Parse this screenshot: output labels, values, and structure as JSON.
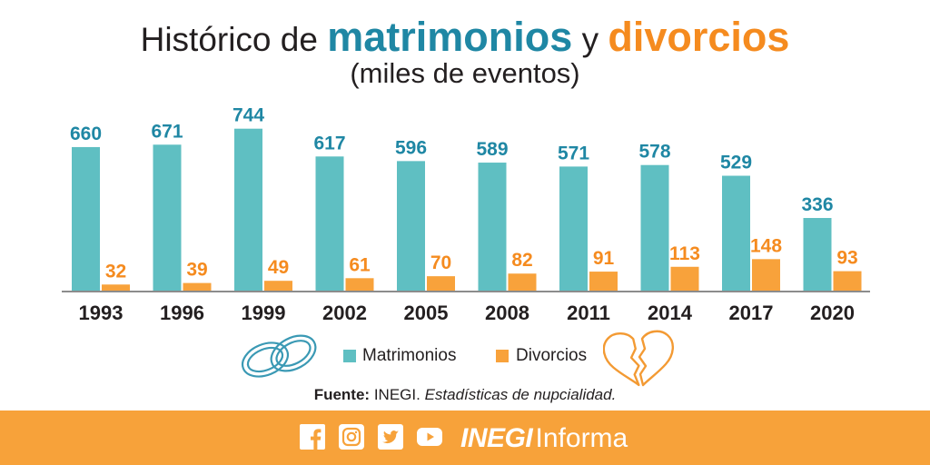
{
  "chart_data": {
    "type": "bar",
    "title": [
      "Histórico de",
      "matrimonios",
      "y",
      "divorcios"
    ],
    "subtitle": "(miles de eventos)",
    "categories": [
      "1993",
      "1996",
      "1999",
      "2002",
      "2005",
      "2008",
      "2011",
      "2014",
      "2017",
      "2020"
    ],
    "series": [
      {
        "name": "Matrimonios",
        "values": [
          660,
          671,
          744,
          617,
          596,
          589,
          571,
          578,
          529,
          336
        ],
        "color": "#5fbfc2",
        "label_color": "#1f87a4"
      },
      {
        "name": "Divorcios",
        "values": [
          32,
          39,
          49,
          61,
          70,
          82,
          91,
          113,
          148,
          93
        ],
        "color": "#f8a23b",
        "label_color": "#f58b1f"
      }
    ],
    "data_labels": true,
    "y_axis_visible": false,
    "grid": false,
    "legend_position": "bottom"
  },
  "legend": {
    "icons": [
      "rings-icon",
      "broken-heart-icon"
    ]
  },
  "source": {
    "label": "Fuente:",
    "org": "INEGI.",
    "text": "Estadísticas de nupcialidad."
  },
  "footer": {
    "background": "#f7a23a",
    "social_icons": [
      "facebook-icon",
      "instagram-icon",
      "twitter-icon",
      "youtube-icon"
    ],
    "brand_bold": "INEGI",
    "brand_light": "Informa"
  }
}
